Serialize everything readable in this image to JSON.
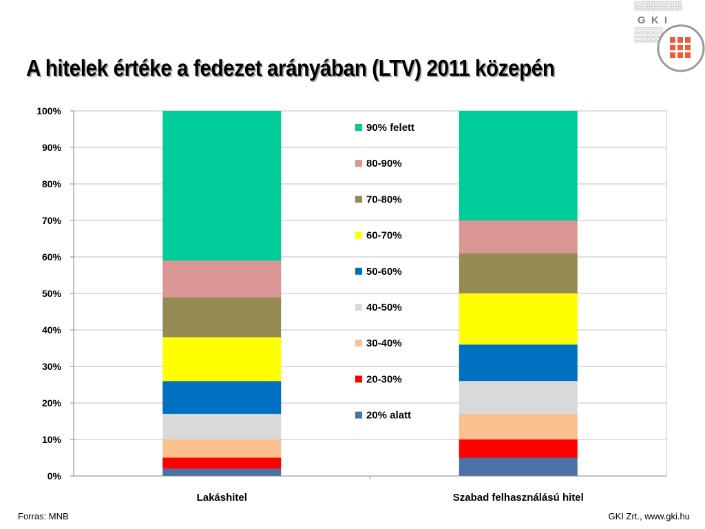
{
  "logo": {
    "text": "G K I"
  },
  "title": "A hitelek értéke a fedezet arányában (LTV) 2011  közepén",
  "footer": {
    "source": "Forras: MNB",
    "credit": "GKI Zrt., www.gki.hu"
  },
  "chart_data": {
    "type": "bar",
    "stacked": true,
    "categories": [
      "Lakáshitel",
      "Szabad felhasználású hitel"
    ],
    "ylim": [
      0,
      100
    ],
    "yticks": [
      "0%",
      "10%",
      "20%",
      "30%",
      "40%",
      "50%",
      "60%",
      "70%",
      "80%",
      "90%",
      "100%"
    ],
    "grid": true,
    "legend_position": "center",
    "series": [
      {
        "name": "20% alatt",
        "color": "#4a72a8",
        "values": [
          2,
          5
        ]
      },
      {
        "name": "20-30%",
        "color": "#ff0000",
        "values": [
          3,
          5
        ]
      },
      {
        "name": "30-40%",
        "color": "#fac090",
        "values": [
          5,
          7
        ]
      },
      {
        "name": "40-50%",
        "color": "#d9d9d9",
        "values": [
          7,
          9
        ]
      },
      {
        "name": "50-60%",
        "color": "#0070c0",
        "values": [
          9,
          10
        ]
      },
      {
        "name": "60-70%",
        "color": "#ffff00",
        "values": [
          12,
          14
        ]
      },
      {
        "name": "70-80%",
        "color": "#948a54",
        "values": [
          11,
          11
        ]
      },
      {
        "name": "80-90%",
        "color": "#d99694",
        "values": [
          10,
          9
        ]
      },
      {
        "name": "90% felett",
        "color": "#00cc99",
        "values": [
          41,
          30
        ]
      }
    ]
  }
}
